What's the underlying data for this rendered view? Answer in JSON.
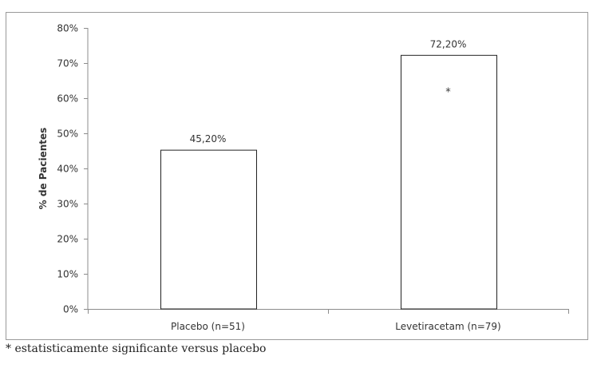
{
  "chart_data": {
    "type": "bar",
    "categories": [
      "Placebo (n=51)",
      "Levetiracetam (n=79)"
    ],
    "values": [
      45.2,
      72.2
    ],
    "data_labels": [
      "45,20%",
      "72,20%"
    ],
    "annotations": [
      "",
      "*"
    ],
    "ylabel": "% de Pacientes",
    "ylim": [
      0,
      80
    ],
    "yticks": [
      0,
      10,
      20,
      30,
      40,
      50,
      60,
      70,
      80
    ],
    "ytick_labels": [
      "0%",
      "10%",
      "20%",
      "30%",
      "40%",
      "50%",
      "60%",
      "70%",
      "80%"
    ],
    "grid": false,
    "legend": "none",
    "bar_fill": "#ffffff",
    "bar_stroke": "#222222"
  },
  "footnote": "* estatisticamente significante versus placebo"
}
